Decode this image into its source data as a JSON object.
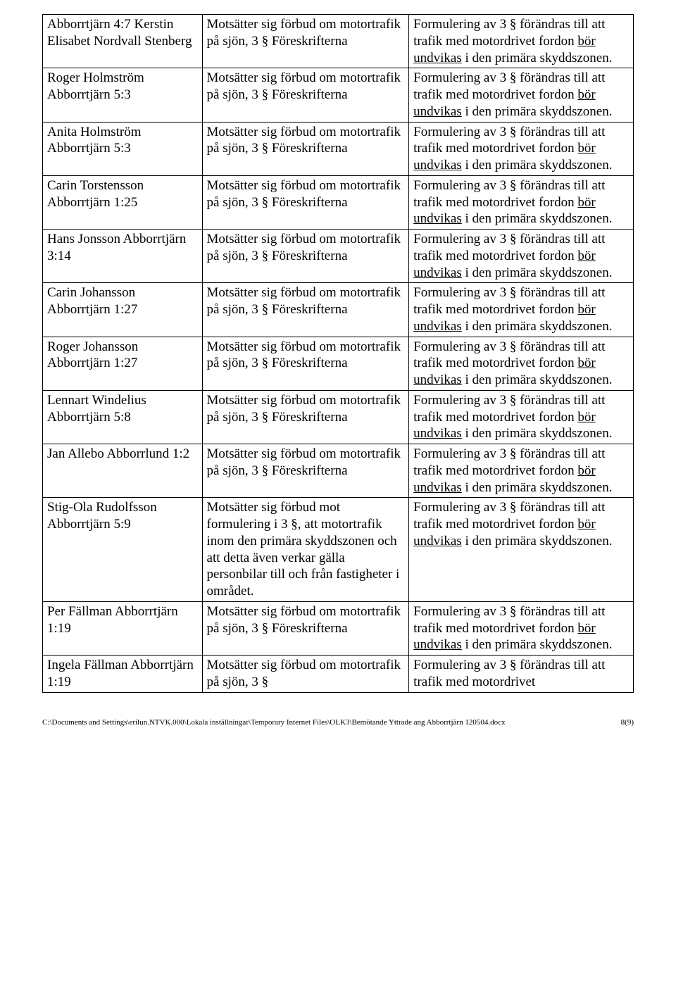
{
  "objection_std": "Motsätter sig förbud om motortrafik på sjön, 3 § Föreskrifterna",
  "objection_short": "Motsätter sig förbud om motortrafik på sjön, 3 §",
  "objection_special": "Motsätter sig förbud mot formulering i 3 §, att motortrafik inom den primära skyddszonen och att detta även verkar gälla personbilar till och från fastigheter i området.",
  "resp_prefix": "Formulering av 3 § förändras till att trafik med motordrivet fordon ",
  "resp_und": "bör undvikas",
  "resp_suffix": " i den primära skyddszonen.",
  "resp_short_prefix": "Formulering av 3 § förändras till att trafik med motordrivet",
  "rows": [
    {
      "name": "Abborrtjärn 4:7\nKerstin Elisabet Nordvall Stenberg"
    },
    {
      "name": "Roger Holmström Abborrtjärn 5:3"
    },
    {
      "name": "Anita Holmström Abborrtjärn 5:3"
    },
    {
      "name": "Carin Torstensson Abborrtjärn 1:25"
    },
    {
      "name": "Hans Jonsson Abborrtjärn 3:14"
    },
    {
      "name": "Carin Johansson Abborrtjärn 1:27"
    },
    {
      "name": "Roger Johansson Abborrtjärn 1:27"
    },
    {
      "name": "Lennart Windelius Abborrtjärn 5:8"
    },
    {
      "name": "Jan Allebo Abborrlund 1:2"
    },
    {
      "name": "Stig-Ola Rudolfsson Abborrtjärn 5:9"
    },
    {
      "name": "Per Fällman Abborrtjärn 1:19"
    },
    {
      "name": "Ingela Fällman Abborrtjärn 1:19"
    }
  ],
  "footer_path": "C:\\Documents and Settings\\erilun.NTVK.000\\Lokala inställningar\\Temporary Internet Files\\OLK3\\Bemötande Yttrade ang Abborrtjärn 120504.docx",
  "footer_page": "8(9)"
}
